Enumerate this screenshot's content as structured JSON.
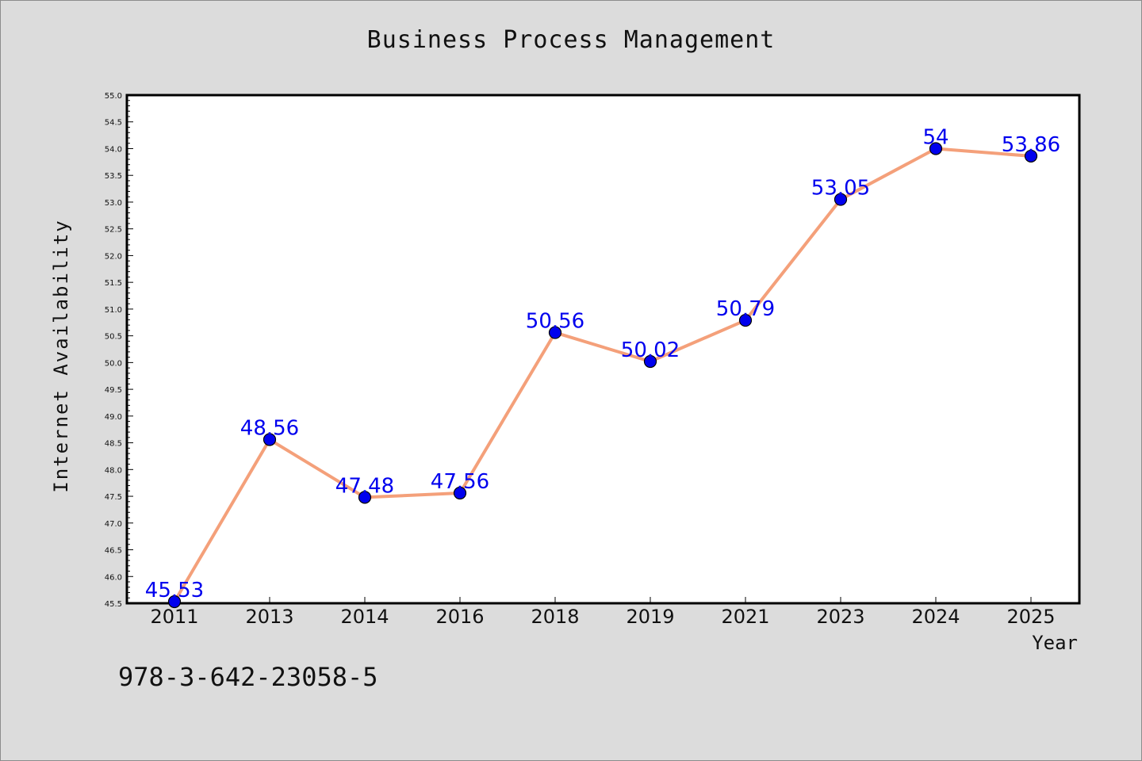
{
  "chart_data": {
    "type": "line",
    "title": "Business Process Management",
    "xlabel": "Year",
    "ylabel": "Internet Availability",
    "categories": [
      "2011",
      "2013",
      "2014",
      "2016",
      "2018",
      "2019",
      "2021",
      "2023",
      "2024",
      "2025"
    ],
    "values": [
      45.53,
      48.56,
      47.48,
      47.56,
      50.56,
      50.02,
      50.79,
      53.05,
      54,
      53.86
    ],
    "data_labels": [
      "45.53",
      "48.56",
      "47.48",
      "47.56",
      "50.56",
      "50.02",
      "50.79",
      "53.05",
      "54",
      "53.86"
    ],
    "ylim": [
      45.5,
      55.0
    ],
    "yticks": [
      "45.5",
      "46.0",
      "46.5",
      "47.0",
      "47.5",
      "48.0",
      "48.5",
      "49.0",
      "49.5",
      "50.0",
      "50.5",
      "51.0",
      "51.5",
      "52.0",
      "52.5",
      "53.0",
      "53.5",
      "54.0",
      "54.5",
      "55.0"
    ],
    "grid": false,
    "line_color": "#f4a07a",
    "marker_color": "#0000ee",
    "label_color": "#0000ee",
    "background_color": "#dcdcdc",
    "plot_background_color": "#ffffff"
  },
  "footnote": "978-3-642-23058-5"
}
